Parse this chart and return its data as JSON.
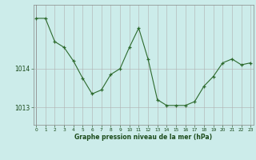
{
  "x": [
    0,
    1,
    2,
    3,
    4,
    5,
    6,
    7,
    8,
    9,
    10,
    11,
    12,
    13,
    14,
    15,
    16,
    17,
    18,
    19,
    20,
    21,
    22,
    23
  ],
  "y": [
    1015.3,
    1015.3,
    1014.7,
    1014.55,
    1014.2,
    1013.75,
    1013.35,
    1013.45,
    1013.85,
    1014.0,
    1014.55,
    1015.05,
    1014.25,
    1013.2,
    1013.05,
    1013.05,
    1013.05,
    1013.15,
    1013.55,
    1013.8,
    1014.15,
    1014.25,
    1014.1,
    1014.15
  ],
  "line_color": "#2d6a2d",
  "marker": "+",
  "bg_color": "#ccecea",
  "grid_color": "#b0b0b0",
  "xlabel": "Graphe pression niveau de la mer (hPa)",
  "xlabel_color": "#1a4a1a",
  "tick_color": "#1a4a1a",
  "yticks": [
    1013,
    1014
  ],
  "ylim": [
    1012.55,
    1015.65
  ],
  "xlim": [
    -0.3,
    23.3
  ]
}
